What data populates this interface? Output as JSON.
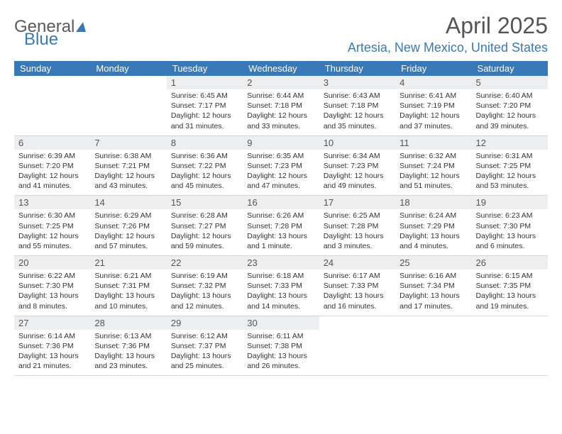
{
  "brand": {
    "part1": "General",
    "part2": "Blue"
  },
  "title": "April 2025",
  "location": "Artesia, New Mexico, United States",
  "columns": [
    "Sunday",
    "Monday",
    "Tuesday",
    "Wednesday",
    "Thursday",
    "Friday",
    "Saturday"
  ],
  "colors": {
    "accent": "#3a79b7",
    "header_text": "#ffffff",
    "daynum_bg": "#eceef0",
    "text": "#333333",
    "title_text": "#555555",
    "border": "#d6d6d6"
  },
  "weeks": [
    [
      {
        "n": "",
        "sr": "",
        "ss": "",
        "dl": ""
      },
      {
        "n": "",
        "sr": "",
        "ss": "",
        "dl": ""
      },
      {
        "n": "1",
        "sr": "Sunrise: 6:45 AM",
        "ss": "Sunset: 7:17 PM",
        "dl": "Daylight: 12 hours and 31 minutes."
      },
      {
        "n": "2",
        "sr": "Sunrise: 6:44 AM",
        "ss": "Sunset: 7:18 PM",
        "dl": "Daylight: 12 hours and 33 minutes."
      },
      {
        "n": "3",
        "sr": "Sunrise: 6:43 AM",
        "ss": "Sunset: 7:18 PM",
        "dl": "Daylight: 12 hours and 35 minutes."
      },
      {
        "n": "4",
        "sr": "Sunrise: 6:41 AM",
        "ss": "Sunset: 7:19 PM",
        "dl": "Daylight: 12 hours and 37 minutes."
      },
      {
        "n": "5",
        "sr": "Sunrise: 6:40 AM",
        "ss": "Sunset: 7:20 PM",
        "dl": "Daylight: 12 hours and 39 minutes."
      }
    ],
    [
      {
        "n": "6",
        "sr": "Sunrise: 6:39 AM",
        "ss": "Sunset: 7:20 PM",
        "dl": "Daylight: 12 hours and 41 minutes."
      },
      {
        "n": "7",
        "sr": "Sunrise: 6:38 AM",
        "ss": "Sunset: 7:21 PM",
        "dl": "Daylight: 12 hours and 43 minutes."
      },
      {
        "n": "8",
        "sr": "Sunrise: 6:36 AM",
        "ss": "Sunset: 7:22 PM",
        "dl": "Daylight: 12 hours and 45 minutes."
      },
      {
        "n": "9",
        "sr": "Sunrise: 6:35 AM",
        "ss": "Sunset: 7:23 PM",
        "dl": "Daylight: 12 hours and 47 minutes."
      },
      {
        "n": "10",
        "sr": "Sunrise: 6:34 AM",
        "ss": "Sunset: 7:23 PM",
        "dl": "Daylight: 12 hours and 49 minutes."
      },
      {
        "n": "11",
        "sr": "Sunrise: 6:32 AM",
        "ss": "Sunset: 7:24 PM",
        "dl": "Daylight: 12 hours and 51 minutes."
      },
      {
        "n": "12",
        "sr": "Sunrise: 6:31 AM",
        "ss": "Sunset: 7:25 PM",
        "dl": "Daylight: 12 hours and 53 minutes."
      }
    ],
    [
      {
        "n": "13",
        "sr": "Sunrise: 6:30 AM",
        "ss": "Sunset: 7:25 PM",
        "dl": "Daylight: 12 hours and 55 minutes."
      },
      {
        "n": "14",
        "sr": "Sunrise: 6:29 AM",
        "ss": "Sunset: 7:26 PM",
        "dl": "Daylight: 12 hours and 57 minutes."
      },
      {
        "n": "15",
        "sr": "Sunrise: 6:28 AM",
        "ss": "Sunset: 7:27 PM",
        "dl": "Daylight: 12 hours and 59 minutes."
      },
      {
        "n": "16",
        "sr": "Sunrise: 6:26 AM",
        "ss": "Sunset: 7:28 PM",
        "dl": "Daylight: 13 hours and 1 minute."
      },
      {
        "n": "17",
        "sr": "Sunrise: 6:25 AM",
        "ss": "Sunset: 7:28 PM",
        "dl": "Daylight: 13 hours and 3 minutes."
      },
      {
        "n": "18",
        "sr": "Sunrise: 6:24 AM",
        "ss": "Sunset: 7:29 PM",
        "dl": "Daylight: 13 hours and 4 minutes."
      },
      {
        "n": "19",
        "sr": "Sunrise: 6:23 AM",
        "ss": "Sunset: 7:30 PM",
        "dl": "Daylight: 13 hours and 6 minutes."
      }
    ],
    [
      {
        "n": "20",
        "sr": "Sunrise: 6:22 AM",
        "ss": "Sunset: 7:30 PM",
        "dl": "Daylight: 13 hours and 8 minutes."
      },
      {
        "n": "21",
        "sr": "Sunrise: 6:21 AM",
        "ss": "Sunset: 7:31 PM",
        "dl": "Daylight: 13 hours and 10 minutes."
      },
      {
        "n": "22",
        "sr": "Sunrise: 6:19 AM",
        "ss": "Sunset: 7:32 PM",
        "dl": "Daylight: 13 hours and 12 minutes."
      },
      {
        "n": "23",
        "sr": "Sunrise: 6:18 AM",
        "ss": "Sunset: 7:33 PM",
        "dl": "Daylight: 13 hours and 14 minutes."
      },
      {
        "n": "24",
        "sr": "Sunrise: 6:17 AM",
        "ss": "Sunset: 7:33 PM",
        "dl": "Daylight: 13 hours and 16 minutes."
      },
      {
        "n": "25",
        "sr": "Sunrise: 6:16 AM",
        "ss": "Sunset: 7:34 PM",
        "dl": "Daylight: 13 hours and 17 minutes."
      },
      {
        "n": "26",
        "sr": "Sunrise: 6:15 AM",
        "ss": "Sunset: 7:35 PM",
        "dl": "Daylight: 13 hours and 19 minutes."
      }
    ],
    [
      {
        "n": "27",
        "sr": "Sunrise: 6:14 AM",
        "ss": "Sunset: 7:36 PM",
        "dl": "Daylight: 13 hours and 21 minutes."
      },
      {
        "n": "28",
        "sr": "Sunrise: 6:13 AM",
        "ss": "Sunset: 7:36 PM",
        "dl": "Daylight: 13 hours and 23 minutes."
      },
      {
        "n": "29",
        "sr": "Sunrise: 6:12 AM",
        "ss": "Sunset: 7:37 PM",
        "dl": "Daylight: 13 hours and 25 minutes."
      },
      {
        "n": "30",
        "sr": "Sunrise: 6:11 AM",
        "ss": "Sunset: 7:38 PM",
        "dl": "Daylight: 13 hours and 26 minutes."
      },
      {
        "n": "",
        "sr": "",
        "ss": "",
        "dl": ""
      },
      {
        "n": "",
        "sr": "",
        "ss": "",
        "dl": ""
      },
      {
        "n": "",
        "sr": "",
        "ss": "",
        "dl": ""
      }
    ]
  ]
}
